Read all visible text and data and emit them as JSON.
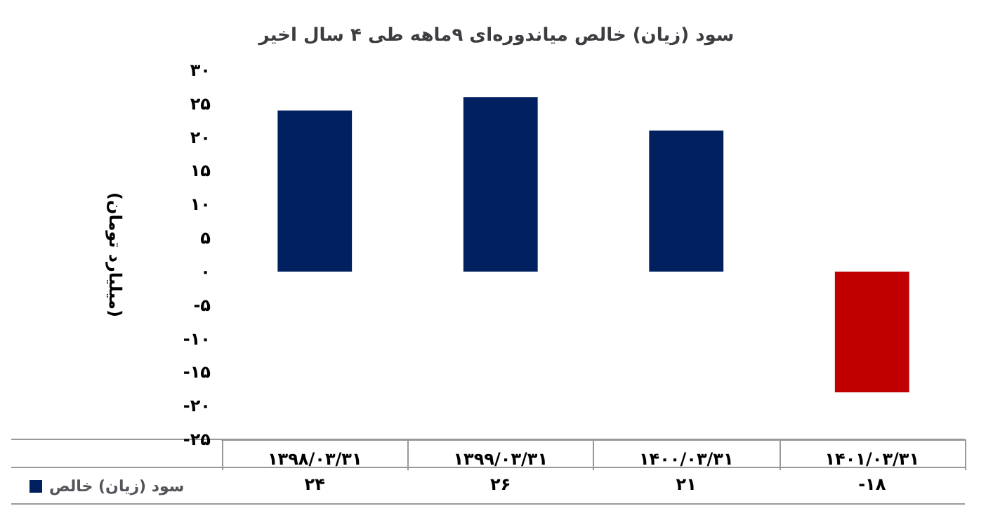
{
  "chart_data": {
    "type": "bar",
    "title": "سود (زیان) خالص میاندوره‌ای ۹ماهه طی ۴ سال اخیر",
    "ylabel": "(میلیارد تومان)",
    "categories": [
      "۱۳۹۸/۰۳/۳۱",
      "۱۳۹۹/۰۳/۳۱",
      "۱۴۰۰/۰۳/۳۱",
      "۱۴۰۱/۰۳/۳۱"
    ],
    "series": [
      {
        "name": "سود (زیان) خالص",
        "color": "#002060",
        "colors": [
          "#002060",
          "#002060",
          "#002060",
          "#c00000"
        ],
        "values": [
          24,
          26,
          21,
          -18
        ],
        "value_labels": [
          "۲۴",
          "۲۶",
          "۲۱",
          "-۱۸"
        ]
      }
    ],
    "ylim": [
      -25,
      30
    ],
    "yticks": [
      {
        "value": -25,
        "label": "-۲۵"
      },
      {
        "value": -20,
        "label": "-۲۰"
      },
      {
        "value": -15,
        "label": "-۱۵"
      },
      {
        "value": -10,
        "label": "-۱۰"
      },
      {
        "value": -5,
        "label": "-۵"
      },
      {
        "value": 0,
        "label": "٠"
      },
      {
        "value": 5,
        "label": "۵"
      },
      {
        "value": 10,
        "label": "۱۰"
      },
      {
        "value": 15,
        "label": "۱۵"
      },
      {
        "value": 20,
        "label": "۲۰"
      },
      {
        "value": 25,
        "label": "۲۵"
      },
      {
        "value": 30,
        "label": "۳۰"
      }
    ],
    "grid": false,
    "legend": "bottom left"
  }
}
